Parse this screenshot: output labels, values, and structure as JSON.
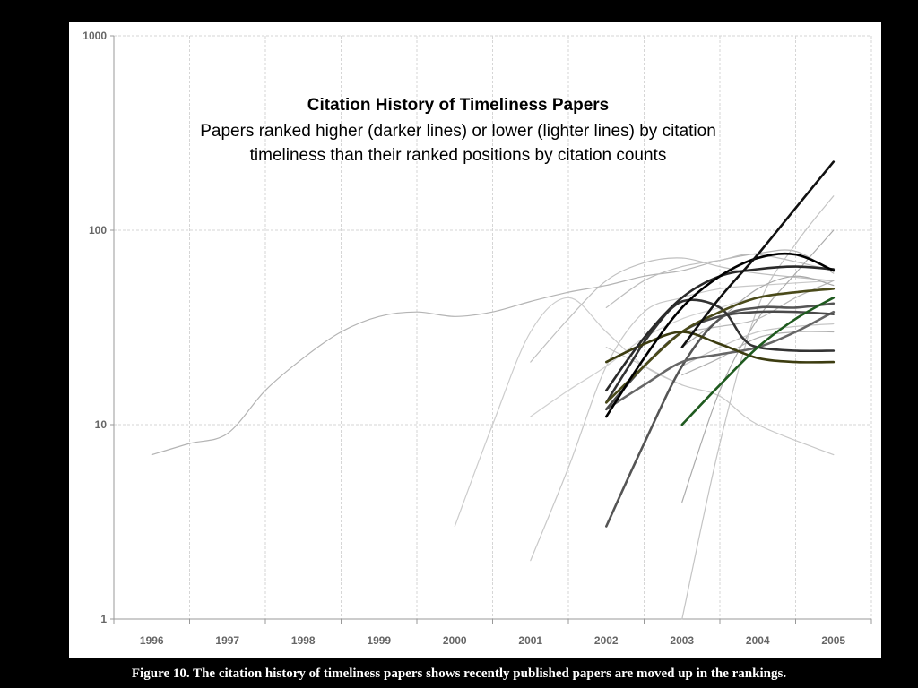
{
  "caption": "Figure 10. The citation history of timeliness papers shows recently published papers are moved up in the rankings.",
  "chart_data": {
    "type": "line",
    "title": "Citation History of Timeliness Papers",
    "subtitle_lines": [
      "Papers ranked higher (darker lines) or lower (lighter lines) by citation",
      "timeliness than their ranked positions by citation counts"
    ],
    "xlabel": "",
    "ylabel": "",
    "x_ticks": [
      "1996",
      "1997",
      "1998",
      "1999",
      "2000",
      "2001",
      "2002",
      "2003",
      "2004",
      "2005"
    ],
    "y_scale": "log",
    "ylim": [
      1,
      1000
    ],
    "y_ticks": [
      1,
      10,
      100,
      1000
    ],
    "grid": true,
    "series": [
      {
        "color": "#b4b4b4",
        "x": [
          1996,
          1996.5,
          1997,
          1997.5,
          1998,
          1998.5,
          1999,
          1999.5,
          2000,
          2000.5,
          2001,
          2001.5,
          2002,
          2002.5,
          2003,
          2003.5,
          2004,
          2004.5,
          2005
        ],
        "values": [
          7,
          8,
          9,
          15,
          22,
          30,
          36,
          38,
          36,
          38,
          43,
          48,
          52,
          58,
          62,
          70,
          76,
          78,
          60
        ]
      },
      {
        "color": "#cccccc",
        "x": [
          2000,
          2000.5,
          2001,
          2001.5,
          2002,
          2002.5,
          2003
        ],
        "values": [
          3,
          10,
          30,
          45,
          30,
          20,
          16
        ]
      },
      {
        "color": "#c8c8c8",
        "x": [
          2001,
          2001.5,
          2002,
          2002.5,
          2003,
          2003.5,
          2004,
          2005
        ],
        "values": [
          2,
          6,
          20,
          38,
          45,
          50,
          52,
          55
        ]
      },
      {
        "color": "#c0c0c0",
        "x": [
          2001,
          2001.5,
          2002,
          2002.5,
          2003,
          2003.5,
          2004,
          2005
        ],
        "values": [
          21,
          35,
          55,
          68,
          72,
          65,
          60,
          55
        ]
      },
      {
        "color": "#d0d0d0",
        "x": [
          2001,
          2001.5,
          2002,
          2002.5,
          2003,
          2003.5,
          2004,
          2005
        ],
        "values": [
          11,
          15,
          20,
          28,
          35,
          40,
          45,
          50
        ]
      },
      {
        "color": "#bdbdbd",
        "x": [
          2002,
          2002.5,
          2003,
          2003.5,
          2004,
          2005
        ],
        "values": [
          40,
          55,
          65,
          70,
          75,
          62
        ]
      },
      {
        "color": "#c8c8c8",
        "x": [
          2002,
          2002.5,
          2003,
          2003.5,
          2004,
          2005
        ],
        "values": [
          25,
          20,
          16,
          14,
          10,
          7
        ]
      },
      {
        "color": "#c4c4c4",
        "x": [
          2003,
          2003.5,
          2004,
          2004.5,
          2005
        ],
        "values": [
          1,
          8,
          40,
          85,
          150
        ]
      },
      {
        "color": "#aaaaaa",
        "x": [
          2003,
          2003.5,
          2004,
          2004.5,
          2005
        ],
        "values": [
          4,
          15,
          35,
          60,
          100
        ]
      },
      {
        "color": "#b8b8b8",
        "x": [
          2003,
          2003.5,
          2004,
          2004.5,
          2005
        ],
        "values": [
          30,
          32,
          35,
          45,
          55
        ]
      },
      {
        "color": "#c6c6c6",
        "x": [
          2003,
          2003.5,
          2004,
          2004.5,
          2005
        ],
        "values": [
          20,
          25,
          30,
          32,
          33
        ]
      },
      {
        "color": "#b0b0b0",
        "x": [
          2003,
          2003.5,
          2004,
          2004.5,
          2005
        ],
        "values": [
          18,
          22,
          28,
          30,
          30
        ]
      },
      {
        "color": "#a8a8a8",
        "x": [
          2003,
          2003.5,
          2004,
          2004.5,
          2005
        ],
        "values": [
          25,
          35,
          50,
          58,
          52
        ]
      },
      {
        "color": "#555555",
        "x": [
          2002,
          2002.5,
          2003,
          2003.5,
          2004,
          2004.5,
          2005
        ],
        "values": [
          3,
          8,
          20,
          35,
          40,
          40,
          42
        ]
      },
      {
        "color": "#666666",
        "x": [
          2002,
          2002.5,
          2003,
          2003.5,
          2004,
          2004.5,
          2005
        ],
        "values": [
          12,
          16,
          21,
          23,
          25,
          30,
          38
        ]
      },
      {
        "color": "#4a4a4a",
        "x": [
          2002,
          2002.5,
          2003,
          2003.5,
          2004,
          2004.5,
          2005
        ],
        "values": [
          12,
          20,
          30,
          36,
          38,
          38,
          37
        ]
      },
      {
        "color": "#333333",
        "x": [
          2002,
          2002.3,
          2002.6,
          2003,
          2003.5,
          2003.8,
          2004,
          2004.5,
          2005
        ],
        "values": [
          13,
          20,
          30,
          43,
          40,
          28,
          25,
          24,
          24
        ]
      },
      {
        "color": "#4a4a1a",
        "x": [
          2002,
          2002.5,
          2003,
          2003.5,
          2004,
          2004.5,
          2005
        ],
        "values": [
          13,
          20,
          30,
          38,
          45,
          48,
          50
        ]
      },
      {
        "color": "#3c3c10",
        "x": [
          2002,
          2002.5,
          2003,
          2003.5,
          2004,
          2004.5,
          2005
        ],
        "values": [
          21,
          26,
          30,
          26,
          22,
          21,
          21
        ]
      },
      {
        "color": "#2a2a2a",
        "x": [
          2002,
          2002.5,
          2003,
          2003.5,
          2004,
          2004.5,
          2005
        ],
        "values": [
          15,
          28,
          45,
          58,
          63,
          65,
          63
        ]
      },
      {
        "color": "#000000",
        "x": [
          2002,
          2002.5,
          2003,
          2003.5,
          2004,
          2004.5,
          2005
        ],
        "values": [
          11,
          22,
          40,
          58,
          72,
          75,
          62
        ]
      },
      {
        "color": "#111111",
        "x": [
          2003,
          2003.5,
          2004,
          2004.5,
          2005
        ],
        "values": [
          25,
          45,
          75,
          130,
          225
        ]
      },
      {
        "color": "#1f5a1f",
        "x": [
          2003,
          2003.5,
          2004,
          2004.5,
          2005
        ],
        "values": [
          10,
          16,
          25,
          35,
          45
        ]
      }
    ]
  }
}
